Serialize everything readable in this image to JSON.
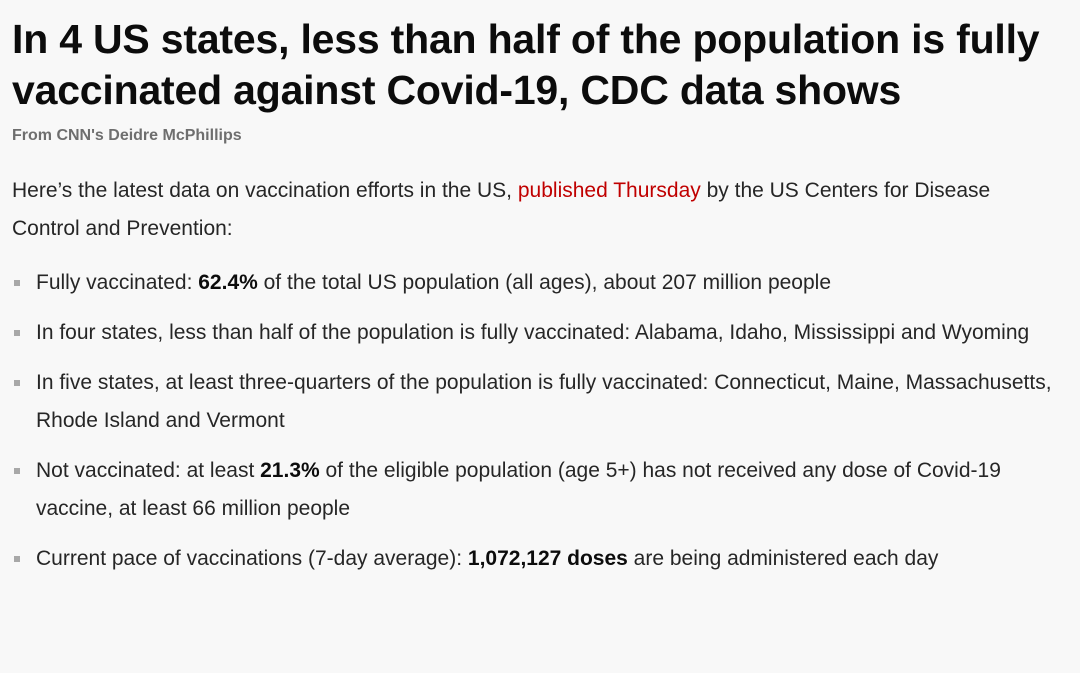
{
  "headline": "In 4 US states, less than half of the population is fully vaccinated against Covid-19, CDC data shows",
  "byline": "From CNN's Deidre McPhillips",
  "intro": {
    "before": "Here’s the latest data on vaccination efforts in the US, ",
    "link": "published Thursday",
    "after": " by the US Centers for Disease Control and Prevention:"
  },
  "facts": [
    {
      "before": "Fully vaccinated: ",
      "bold": "62.4%",
      "after": " of the total US population (all ages), about 207 million people"
    },
    {
      "before": "In four states, less than half of the population is fully vaccinated: Alabama, Idaho, Mississippi and Wyoming",
      "bold": "",
      "after": ""
    },
    {
      "before": "In five states, at least three-quarters of the population is fully vaccinated: Connecticut, Maine, Massachusetts, Rhode Island and Vermont",
      "bold": "",
      "after": ""
    },
    {
      "before": "Not vaccinated: at least ",
      "bold": "21.3%",
      "after": " of the eligible population (age 5+) has not received any dose of Covid-19 vaccine, at least 66 million people"
    },
    {
      "before": "Current pace of vaccinations (7-day average): ",
      "bold": "1,072,127 doses",
      "after": " are being administered each day"
    }
  ],
  "colors": {
    "link": "#c00000",
    "background": "#f8f8f8",
    "byline": "#6e6e6e",
    "bullet": "#a8a8a8"
  }
}
